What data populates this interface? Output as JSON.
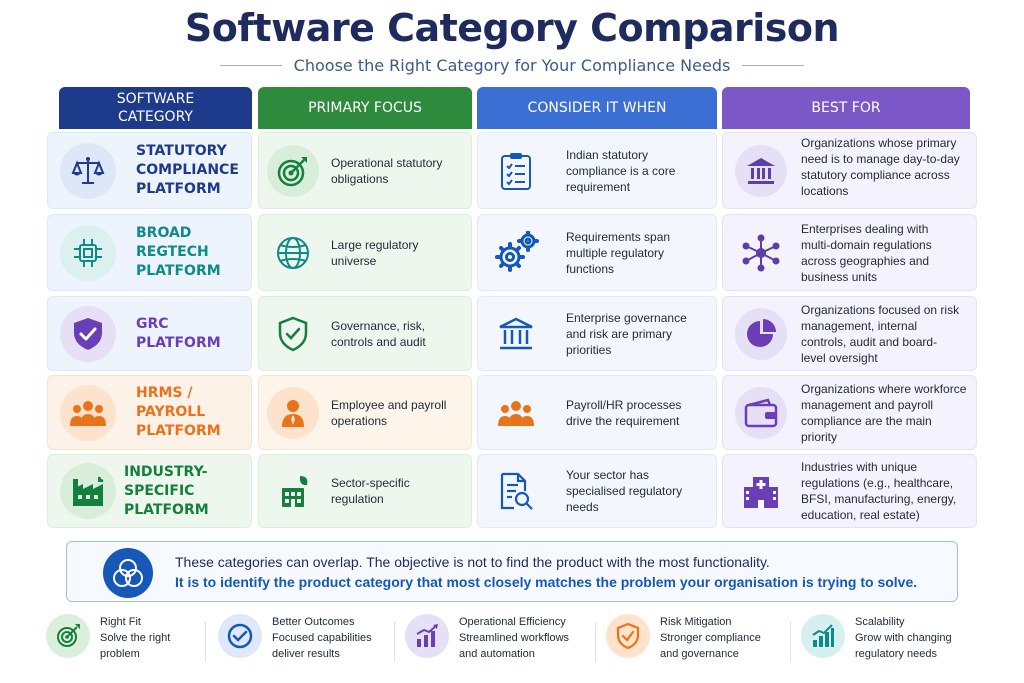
{
  "title": "Software Category Comparison",
  "subtitle": "Choose the Right Category for Your Compliance Needs",
  "headers": {
    "category": "SOFTWARE CATEGORY",
    "focus": "PRIMARY FOCUS",
    "consider": "CONSIDER IT WHEN",
    "best": "BEST FOR"
  },
  "colors": {
    "navy": "#1e3a8a",
    "green": "#15803d",
    "blue": "#3b6fd4",
    "purple": "#7b57c8",
    "orange": "#e9731a",
    "teal": "#0f8a8a"
  },
  "rows": [
    {
      "category": "STATUTORY COMPLIANCE PLATFORM",
      "category_color": "#1e3a8a",
      "category_icon": "scales-icon",
      "focus": "Operational statutory obligations",
      "focus_icon": "target-icon",
      "consider": "Indian statutory compliance is a core requirement",
      "consider_icon": "checklist-icon",
      "best": "Organizations whose primary need is to manage day-to-day statutory compliance across locations",
      "best_icon": "government-building-icon"
    },
    {
      "category": "BROAD REGTECH PLATFORM",
      "category_color": "#0f8a8a",
      "category_icon": "chip-icon",
      "focus": "Large regulatory universe",
      "focus_icon": "globe-icon",
      "consider": "Requirements span multiple regulatory functions",
      "consider_icon": "gears-icon",
      "best": "Enterprises dealing with multi-domain regulations across geographies and business units",
      "best_icon": "network-icon"
    },
    {
      "category": "GRC PLATFORM",
      "category_color": "#6a3fb5",
      "category_icon": "shield-check-icon",
      "focus": "Governance, risk, controls and audit",
      "focus_icon": "shield-check-outline-icon",
      "consider": "Enterprise governance and risk are primary priorities",
      "consider_icon": "bank-icon",
      "best": "Organizations focused on risk management, internal controls, audit and board-level oversight",
      "best_icon": "pie-chart-icon"
    },
    {
      "category": "HRMS / PAYROLL PLATFORM",
      "category_color": "#e9731a",
      "category_icon": "people-icon",
      "focus": "Employee and payroll operations",
      "focus_icon": "employee-icon",
      "consider": "Payroll/HR processes drive the requirement",
      "consider_icon": "team-icon",
      "best": "Organizations where workforce management and payroll compliance are the main priority",
      "best_icon": "wallet-icon"
    },
    {
      "category": "INDUSTRY-SPECIFIC PLATFORM",
      "category_color": "#15803d",
      "category_icon": "factory-icon",
      "focus": "Sector-specific regulation",
      "focus_icon": "green-building-icon",
      "consider": "Your sector has specialised regulatory needs",
      "consider_icon": "document-search-icon",
      "best": "Industries with unique regulations (e.g., healthcare, BFSI, manufacturing, energy, education, real estate)",
      "best_icon": "hospital-icon"
    }
  ],
  "callout": {
    "line1": "These categories can overlap. The objective is not to find the product with the most functionality.",
    "line2": "It is to identify the product category that most closely matches the problem your organisation is trying to solve.",
    "icon": "overlap-circles-icon"
  },
  "benefits": [
    {
      "title": "Right Fit",
      "desc1": "Solve the right",
      "desc2": "problem",
      "icon": "target-icon"
    },
    {
      "title": "Better Outcomes",
      "desc1": "Focused capabilities",
      "desc2": "deliver results",
      "icon": "check-circle-icon"
    },
    {
      "title": "Operational Efficiency",
      "desc1": "Streamlined workflows",
      "desc2": "and automation",
      "icon": "bar-growth-icon"
    },
    {
      "title": "Risk Mitigation",
      "desc1": "Stronger compliance",
      "desc2": "and governance",
      "icon": "shield-check-icon"
    },
    {
      "title": "Scalability",
      "desc1": "Grow with changing",
      "desc2": "regulatory needs",
      "icon": "chart-up-icon"
    }
  ]
}
